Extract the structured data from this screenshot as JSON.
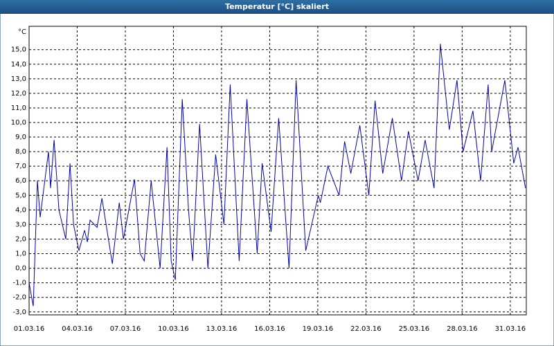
{
  "chart_data": {
    "type": "line",
    "title": "Temperatur [°C] skaliert",
    "y_unit": "°C",
    "x": [
      0,
      0.26,
      0.52,
      0.69,
      1.21,
      1.34,
      1.56,
      1.86,
      2.29,
      2.55,
      2.77,
      3.11,
      3.46,
      3.63,
      3.8,
      4.24,
      4.54,
      5.19,
      5.62,
      5.88,
      6.57,
      6.92,
      7.18,
      7.61,
      8.17,
      8.6,
      8.86,
      9.12,
      9.55,
      9.94,
      10.2,
      10.63,
      11.15,
      11.63,
      12.15,
      12.54,
      13.1,
      13.58,
      14.22,
      14.53,
      15.09,
      15.56,
      16.21,
      16.65,
      17.25,
      18.03,
      18.16,
      18.63,
      19.33,
      19.67,
      20.06,
      20.62,
      21.18,
      21.57,
      22.05,
      22.65,
      23.22,
      23.65,
      24.25,
      24.69,
      25.25,
      25.64,
      26.2,
      26.68,
      27.06,
      27.67,
      28.15,
      28.62,
      28.84,
      29.66,
      30.22,
      30.48,
      30.95
    ],
    "series": [
      {
        "name": "Temperatur",
        "color": "#0000b4",
        "values": [
          -1,
          -2.6,
          6,
          3.5,
          8,
          5.5,
          8.8,
          4,
          2,
          7.2,
          3,
          1.2,
          2.6,
          1.8,
          3.3,
          2.8,
          4.8,
          0.3,
          4.5,
          2,
          6.1,
          1,
          0.5,
          6,
          0,
          8.3,
          0.5,
          -0.8,
          11.6,
          4,
          0.5,
          9.9,
          0,
          7.8,
          3,
          12.6,
          0.5,
          11.6,
          1,
          7.2,
          2.5,
          10.3,
          0,
          12.9,
          1.2,
          5,
          4.5,
          7,
          5,
          8.7,
          6.5,
          9.8,
          5,
          11.5,
          6.5,
          10.3,
          6,
          9.4,
          6,
          8.8,
          5.5,
          15.4,
          9.5,
          12.9,
          8,
          10.8,
          6,
          12.6,
          8,
          12.9,
          7.2,
          8.3,
          5.5
        ]
      }
    ],
    "xlim": [
      0,
      31
    ],
    "xticks": [
      {
        "value": 0,
        "label": "01.03.16"
      },
      {
        "value": 3,
        "label": "04.03.16"
      },
      {
        "value": 6,
        "label": "07.03.16"
      },
      {
        "value": 9,
        "label": "10.03.16"
      },
      {
        "value": 12,
        "label": "13.03.16"
      },
      {
        "value": 15,
        "label": "16.03.16"
      },
      {
        "value": 18,
        "label": "19.03.16"
      },
      {
        "value": 21,
        "label": "22.03.16"
      },
      {
        "value": 24,
        "label": "25.03.16"
      },
      {
        "value": 27,
        "label": "28.03.16"
      },
      {
        "value": 30,
        "label": "31.03.16"
      }
    ],
    "ylim": [
      -3.2,
      16.6
    ],
    "yticks": [
      {
        "value": -3,
        "label": "-3,0"
      },
      {
        "value": -2,
        "label": "-2,0"
      },
      {
        "value": -1,
        "label": "-1,0"
      },
      {
        "value": 0,
        "label": "0,0"
      },
      {
        "value": 1,
        "label": "1,0"
      },
      {
        "value": 2,
        "label": "2,0"
      },
      {
        "value": 3,
        "label": "3,0"
      },
      {
        "value": 4,
        "label": "4,0"
      },
      {
        "value": 5,
        "label": "5,0"
      },
      {
        "value": 6,
        "label": "6,0"
      },
      {
        "value": 7,
        "label": "7,0"
      },
      {
        "value": 8,
        "label": "8,0"
      },
      {
        "value": 9,
        "label": "9,0"
      },
      {
        "value": 10,
        "label": "10,0"
      },
      {
        "value": 11,
        "label": "11,0"
      },
      {
        "value": 12,
        "label": "12,0"
      },
      {
        "value": 13,
        "label": "13,0"
      },
      {
        "value": 14,
        "label": "14,0"
      },
      {
        "value": 15,
        "label": "15,0"
      }
    ],
    "grid": true
  }
}
